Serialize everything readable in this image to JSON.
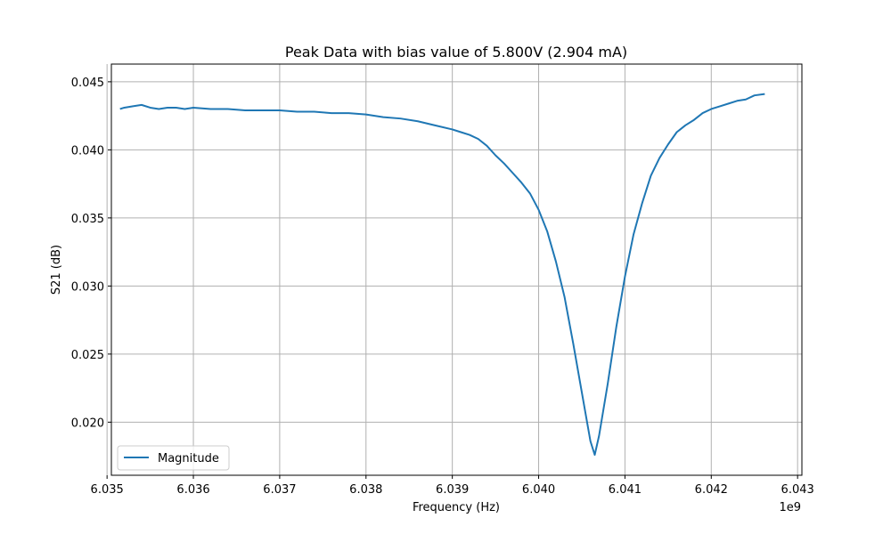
{
  "chart_data": {
    "type": "line",
    "title": "Peak Data with bias value of 5.800V (2.904 mA)",
    "xlabel": "Frequency (Hz)",
    "ylabel": "S21 (dB)",
    "x_offset_label": "1e9",
    "x_scale": 1000000000,
    "xlim": [
      6035050000.0,
      6043050000.0
    ],
    "ylim": [
      0.0161,
      0.0463
    ],
    "x_ticks": [
      6035000000.0,
      6036000000.0,
      6037000000.0,
      6038000000.0,
      6039000000.0,
      6040000000.0,
      6041000000.0,
      6042000000.0,
      6043000000.0
    ],
    "x_tick_labels": [
      "6.035",
      "6.036",
      "6.037",
      "6.038",
      "6.039",
      "6.040",
      "6.041",
      "6.042",
      "6.043"
    ],
    "y_ticks": [
      0.02,
      0.025,
      0.03,
      0.035,
      0.04,
      0.045
    ],
    "y_tick_labels": [
      "0.020",
      "0.025",
      "0.030",
      "0.035",
      "0.040",
      "0.045"
    ],
    "grid": true,
    "legend_position": "lower-left",
    "series": [
      {
        "name": "Magnitude",
        "color": "#1f77b4",
        "x": [
          6035150000.0,
          6035200000.0,
          6035300000.0,
          6035400000.0,
          6035500000.0,
          6035600000.0,
          6035700000.0,
          6035800000.0,
          6035900000.0,
          6036000000.0,
          6036200000.0,
          6036400000.0,
          6036600000.0,
          6036800000.0,
          6037000000.0,
          6037200000.0,
          6037400000.0,
          6037600000.0,
          6037800000.0,
          6038000000.0,
          6038200000.0,
          6038400000.0,
          6038600000.0,
          6038800000.0,
          6039000000.0,
          6039100000.0,
          6039200000.0,
          6039300000.0,
          6039400000.0,
          6039500000.0,
          6039600000.0,
          6039700000.0,
          6039800000.0,
          6039900000.0,
          6040000000.0,
          6040100000.0,
          6040200000.0,
          6040300000.0,
          6040400000.0,
          6040500000.0,
          6040600000.0,
          6040650000.0,
          6040700000.0,
          6040800000.0,
          6040900000.0,
          6041000000.0,
          6041100000.0,
          6041200000.0,
          6041300000.0,
          6041400000.0,
          6041500000.0,
          6041600000.0,
          6041700000.0,
          6041800000.0,
          6041900000.0,
          6042000000.0,
          6042100000.0,
          6042200000.0,
          6042300000.0,
          6042400000.0,
          6042500000.0,
          6042620000.0
        ],
        "values": [
          0.043,
          0.0431,
          0.0432,
          0.0433,
          0.0431,
          0.043,
          0.0431,
          0.0431,
          0.043,
          0.0431,
          0.043,
          0.043,
          0.0429,
          0.0429,
          0.0429,
          0.0428,
          0.0428,
          0.0427,
          0.0427,
          0.0426,
          0.0424,
          0.0423,
          0.0421,
          0.0418,
          0.0415,
          0.0413,
          0.0411,
          0.0408,
          0.0403,
          0.0396,
          0.039,
          0.0383,
          0.0376,
          0.0368,
          0.0356,
          0.034,
          0.0318,
          0.0292,
          0.0258,
          0.0222,
          0.0186,
          0.0176,
          0.019,
          0.0228,
          0.027,
          0.0307,
          0.0338,
          0.0361,
          0.0381,
          0.0394,
          0.0404,
          0.0413,
          0.0418,
          0.0422,
          0.0427,
          0.043,
          0.0432,
          0.0434,
          0.0436,
          0.0437,
          0.044,
          0.0441
        ]
      }
    ]
  }
}
